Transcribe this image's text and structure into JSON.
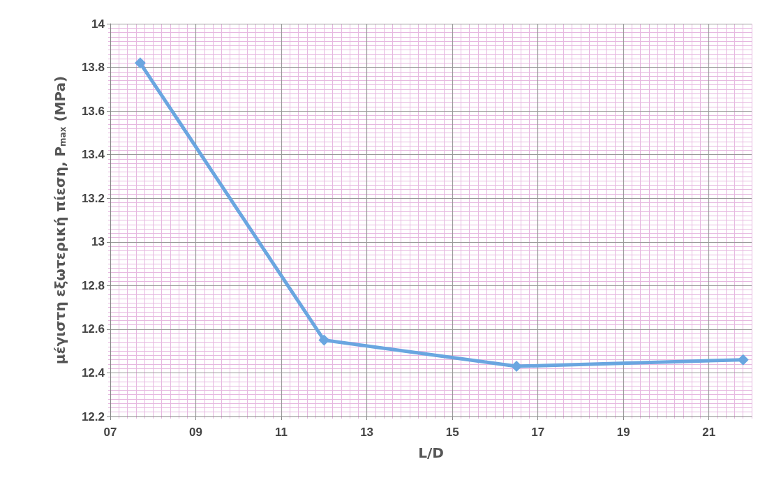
{
  "chart_data": {
    "type": "line",
    "xlabel": "L/D",
    "ylabel": "μέγιστη εξωτερική πίεση, P$_{max}$ (MPa)",
    "x": [
      7.7,
      12.0,
      16.5,
      21.8
    ],
    "series": [
      {
        "color": "#6aa6e0",
        "values": [
          13.82,
          12.55,
          12.43,
          12.46
        ]
      }
    ],
    "xlim": [
      7,
      22
    ],
    "xticks": [
      {
        "value": 7,
        "label": "07"
      },
      {
        "value": 9,
        "label": "09"
      },
      11,
      13,
      15,
      17,
      19,
      21,
      {
        "value": 7.2,
        "label": null
      },
      {
        "value": 7.4,
        "label": null
      },
      {
        "value": 7.6,
        "label": null
      },
      {
        "value": 7.8,
        "label": null
      },
      {
        "value": 8,
        "label": null
      },
      {
        "value": 8.2,
        "label": null
      },
      {
        "value": 8.4,
        "label": null
      },
      {
        "value": 8.6,
        "label": null
      },
      {
        "value": 8.8,
        "label": null
      },
      {
        "value": 9.2,
        "label": null
      },
      {
        "value": 9.4,
        "label": null
      },
      {
        "value": 9.6,
        "label": null
      },
      {
        "value": 9.8,
        "label": null
      },
      {
        "value": 10,
        "label": null
      },
      {
        "value": 10.2,
        "label": null
      },
      {
        "value": 10.4,
        "label": null
      },
      {
        "value": 10.6,
        "label": null
      },
      {
        "value": 10.8,
        "label": null
      },
      {
        "value": 11.2,
        "label": null
      },
      {
        "value": 11.4,
        "label": null
      },
      {
        "value": 11.6,
        "label": null
      },
      {
        "value": 11.8,
        "label": null
      },
      {
        "value": 12,
        "label": null
      },
      {
        "value": 12.2,
        "label": null
      },
      {
        "value": 12.4,
        "label": null
      },
      {
        "value": 12.6,
        "label": null
      },
      {
        "value": 12.8,
        "label": null
      },
      {
        "value": 13.2,
        "label": null
      },
      {
        "value": 13.4,
        "label": null
      },
      {
        "value": 13.6,
        "label": null
      },
      {
        "value": 13.8,
        "label": null
      },
      {
        "value": 14,
        "label": null
      },
      {
        "value": 14.2,
        "label": null
      },
      {
        "value": 14.4,
        "label": null
      },
      {
        "value": 14.6,
        "label": null
      },
      {
        "value": 14.8,
        "label": null
      },
      {
        "value": 15.2,
        "label": null
      },
      {
        "value": 15.4,
        "label": null
      },
      {
        "value": 15.6,
        "label": null
      },
      {
        "value": 15.8,
        "label": null
      },
      {
        "value": 16,
        "label": null
      },
      {
        "value": 16.2,
        "label": null
      },
      {
        "value": 16.4,
        "label": null
      },
      {
        "value": 16.6,
        "label": null
      },
      {
        "value": 16.8,
        "label": null
      },
      {
        "value": 17.2,
        "label": null
      },
      {
        "value": 17.4,
        "label": null
      },
      {
        "value": 17.6,
        "label": null
      },
      {
        "value": 17.8,
        "label": null
      },
      {
        "value": 18,
        "label": null
      },
      {
        "value": 18.2,
        "label": null
      },
      {
        "value": 18.4,
        "label": null
      },
      {
        "value": 18.6,
        "label": null
      },
      {
        "value": 18.8,
        "label": null
      },
      {
        "value": 19.2,
        "label": null
      },
      {
        "value": 19.4,
        "label": null
      },
      {
        "value": 19.6,
        "label": null
      },
      {
        "value": 19.8,
        "label": null
      },
      {
        "value": 20,
        "label": null
      },
      {
        "value": 20.2,
        "label": null
      },
      {
        "value": 20.4,
        "label": null
      },
      {
        "value": 20.6,
        "label": null
      },
      {
        "value": 20.8,
        "label": null
      },
      {
        "value": 21.2,
        "label": null
      },
      {
        "value": 21.4,
        "label": null
      },
      {
        "value": 21.6,
        "label": null
      },
      {
        "value": 21.8,
        "label": null
      },
      {
        "value": 22,
        "label": null
      }
    ],
    "ylim": [
      12.2,
      14
    ],
    "yticks": [
      12.2,
      12.4,
      12.6,
      12.8,
      13,
      13.2,
      13.4,
      13.6,
      13.8,
      14,
      {
        "value": 12.22,
        "label": null
      },
      {
        "value": 12.24,
        "label": null
      },
      {
        "value": 12.26,
        "label": null
      },
      {
        "value": 12.28,
        "label": null
      },
      {
        "value": 12.3,
        "label": null
      },
      {
        "value": 12.32,
        "label": null
      },
      {
        "value": 12.34,
        "label": null
      },
      {
        "value": 12.36,
        "label": null
      },
      {
        "value": 12.38,
        "label": null
      },
      {
        "value": 12.42,
        "label": null
      },
      {
        "value": 12.44,
        "label": null
      },
      {
        "value": 12.46,
        "label": null
      },
      {
        "value": 12.48,
        "label": null
      },
      {
        "value": 12.5,
        "label": null
      },
      {
        "value": 12.52,
        "label": null
      },
      {
        "value": 12.54,
        "label": null
      },
      {
        "value": 12.56,
        "label": null
      },
      {
        "value": 12.58,
        "label": null
      },
      {
        "value": 12.62,
        "label": null
      },
      {
        "value": 12.64,
        "label": null
      },
      {
        "value": 12.66,
        "label": null
      },
      {
        "value": 12.68,
        "label": null
      },
      {
        "value": 12.7,
        "label": null
      },
      {
        "value": 12.72,
        "label": null
      },
      {
        "value": 12.74,
        "label": null
      },
      {
        "value": 12.76,
        "label": null
      },
      {
        "value": 12.78,
        "label": null
      },
      {
        "value": 12.82,
        "label": null
      },
      {
        "value": 12.84,
        "label": null
      },
      {
        "value": 12.86,
        "label": null
      },
      {
        "value": 12.88,
        "label": null
      },
      {
        "value": 12.9,
        "label": null
      },
      {
        "value": 12.92,
        "label": null
      },
      {
        "value": 12.94,
        "label": null
      },
      {
        "value": 12.96,
        "label": null
      },
      {
        "value": 12.98,
        "label": null
      },
      {
        "value": 13.02,
        "label": null
      },
      {
        "value": 13.04,
        "label": null
      },
      {
        "value": 13.06,
        "label": null
      },
      {
        "value": 13.08,
        "label": null
      },
      {
        "value": 13.1,
        "label": null
      },
      {
        "value": 13.12,
        "label": null
      },
      {
        "value": 13.14,
        "label": null
      },
      {
        "value": 13.16,
        "label": null
      },
      {
        "value": 13.18,
        "label": null
      },
      {
        "value": 13.22,
        "label": null
      },
      {
        "value": 13.24,
        "label": null
      },
      {
        "value": 13.26,
        "label": null
      },
      {
        "value": 13.28,
        "label": null
      },
      {
        "value": 13.3,
        "label": null
      },
      {
        "value": 13.32,
        "label": null
      },
      {
        "value": 13.34,
        "label": null
      },
      {
        "value": 13.36,
        "label": null
      },
      {
        "value": 13.38,
        "label": null
      },
      {
        "value": 13.42,
        "label": null
      },
      {
        "value": 13.44,
        "label": null
      },
      {
        "value": 13.46,
        "label": null
      },
      {
        "value": 13.48,
        "label": null
      },
      {
        "value": 13.5,
        "label": null
      },
      {
        "value": 13.52,
        "label": null
      },
      {
        "value": 13.54,
        "label": null
      },
      {
        "value": 13.56,
        "label": null
      },
      {
        "value": 13.58,
        "label": null
      },
      {
        "value": 13.62,
        "label": null
      },
      {
        "value": 13.64,
        "label": null
      },
      {
        "value": 13.66,
        "label": null
      },
      {
        "value": 13.68,
        "label": null
      },
      {
        "value": 13.7,
        "label": null
      },
      {
        "value": 13.72,
        "label": null
      },
      {
        "value": 13.74,
        "label": null
      },
      {
        "value": 13.76,
        "label": null
      },
      {
        "value": 13.78,
        "label": null
      },
      {
        "value": 13.82,
        "label": null
      },
      {
        "value": 13.84,
        "label": null
      },
      {
        "value": 13.86,
        "label": null
      },
      {
        "value": 13.88,
        "label": null
      },
      {
        "value": 13.9,
        "label": null
      },
      {
        "value": 13.92,
        "label": null
      },
      {
        "value": 13.94,
        "label": null
      },
      {
        "value": 13.96,
        "label": null
      },
      {
        "value": 13.98,
        "label": null
      }
    ],
    "grid": true,
    "marker": "diamond",
    "line_style": "solid"
  }
}
